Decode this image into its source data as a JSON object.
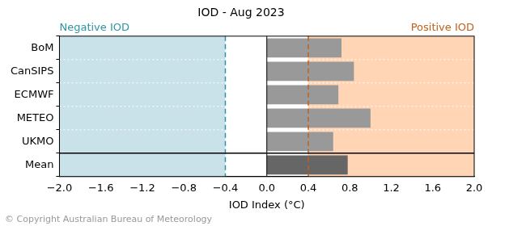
{
  "chart_data": {
    "type": "bar",
    "orientation": "horizontal",
    "title": "IOD - Aug 2023",
    "x_label": "IOD Index (°C)",
    "categories": [
      "BoM",
      "CanSIPS",
      "ECMWF",
      "METEO",
      "UKMO",
      "Mean"
    ],
    "values": [
      0.72,
      0.84,
      0.69,
      1.0,
      0.64,
      0.78
    ],
    "colors": [
      "#999999",
      "#999999",
      "#999999",
      "#999999",
      "#999999",
      "#666666"
    ],
    "xlim": [
      -2,
      2
    ],
    "xticks": [
      {
        "value": -2.0,
        "label": "−2.0"
      },
      {
        "value": -1.6,
        "label": "−1.6"
      },
      {
        "value": -1.2,
        "label": "−1.2"
      },
      {
        "value": -0.8,
        "label": "−0.8"
      },
      {
        "value": -0.4,
        "label": "−0.4"
      },
      {
        "value": 0,
        "label": "0.0"
      },
      0.4,
      0.8,
      1.2,
      1.6,
      {
        "value": 2,
        "label": "2.0"
      }
    ],
    "thresholds": [
      {
        "value": -0.4,
        "label": "Negative IOD",
        "color": "#2e93a6",
        "region_color": "#c9e2ea"
      },
      {
        "value": 0.4,
        "label": "Positive IOD",
        "color": "#c0601c",
        "region_color": "#ffd5b5"
      }
    ],
    "annotations": [
      "© Copyright Australian Bureau of Meteorology"
    ],
    "grid": false
  }
}
